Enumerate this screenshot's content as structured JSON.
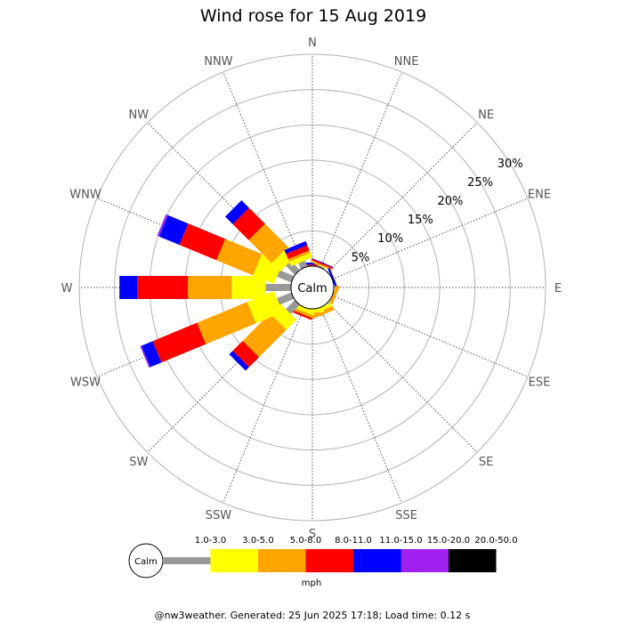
{
  "chart_data": {
    "type": "wind_rose",
    "title": "Wind rose for 15 Aug 2019",
    "directions": [
      "N",
      "NNE",
      "NE",
      "ENE",
      "E",
      "ESE",
      "SE",
      "SSE",
      "S",
      "SSW",
      "SW",
      "WSW",
      "W",
      "WNW",
      "NW",
      "NNW"
    ],
    "radial_ticks": [
      "5%",
      "10%",
      "15%",
      "20%",
      "25%",
      "30%"
    ],
    "radial_values": [
      5,
      10,
      15,
      20,
      25,
      30
    ],
    "rmax": 30,
    "calm_label": "Calm",
    "units": "mph",
    "speed_bins": [
      {
        "label": "1.0-3.0",
        "color": "#999999"
      },
      {
        "label": "3.0-5.0",
        "color": "#ffff00"
      },
      {
        "label": "5.0-8.0",
        "color": "#ffa500"
      },
      {
        "label": "8.0-11.0",
        "color": "#ff0000"
      },
      {
        "label": "11.0-15.0",
        "color": "#0000ff"
      },
      {
        "label": "15.0-20.0",
        "color": "#a020f0"
      },
      {
        "label": "20.0-50.0",
        "color": "#000000"
      }
    ],
    "series_cumulative_percent": {
      "N": [
        0,
        0,
        0,
        0.2,
        0.5,
        0,
        0
      ],
      "NNE": [
        0.2,
        0.3,
        0.5,
        0.7,
        0.8,
        0,
        0
      ],
      "ENE": [
        0,
        0,
        0,
        0,
        0.3,
        0,
        0
      ],
      "ESE": [
        0,
        0,
        0.5,
        0,
        0,
        0,
        0
      ],
      "SE": [
        0,
        0,
        0,
        0,
        0,
        0,
        0
      ],
      "SSE": [
        0,
        0.5,
        1.1,
        0,
        0,
        0,
        0
      ],
      "S": [
        0,
        0.5,
        1.0,
        0,
        0,
        0,
        0
      ],
      "SSW": [
        0,
        0.6,
        1.0,
        1.3,
        0,
        0,
        0
      ],
      "SW": [
        1.8,
        3.8,
        9.3,
        11.3,
        12.0,
        0,
        0
      ],
      "WSW": [
        2.2,
        6.3,
        14.0,
        20.8,
        22.5,
        22.7,
        0
      ],
      "W": [
        3.6,
        8.4,
        14.6,
        21.8,
        24.3,
        0,
        0
      ],
      "WNW": [
        2.2,
        5.4,
        11.0,
        16.7,
        19.8,
        20.1,
        0
      ],
      "NW": [
        1.8,
        3.5,
        8.1,
        11.3,
        12.8,
        0,
        0
      ],
      "NNW": [
        0.9,
        1.6,
        2.0,
        2.8,
        3.4,
        0,
        0
      ]
    }
  },
  "footer": "@nw3weather. Generated: 25 Jun 2025 17:18; Load time: 0.12 s"
}
